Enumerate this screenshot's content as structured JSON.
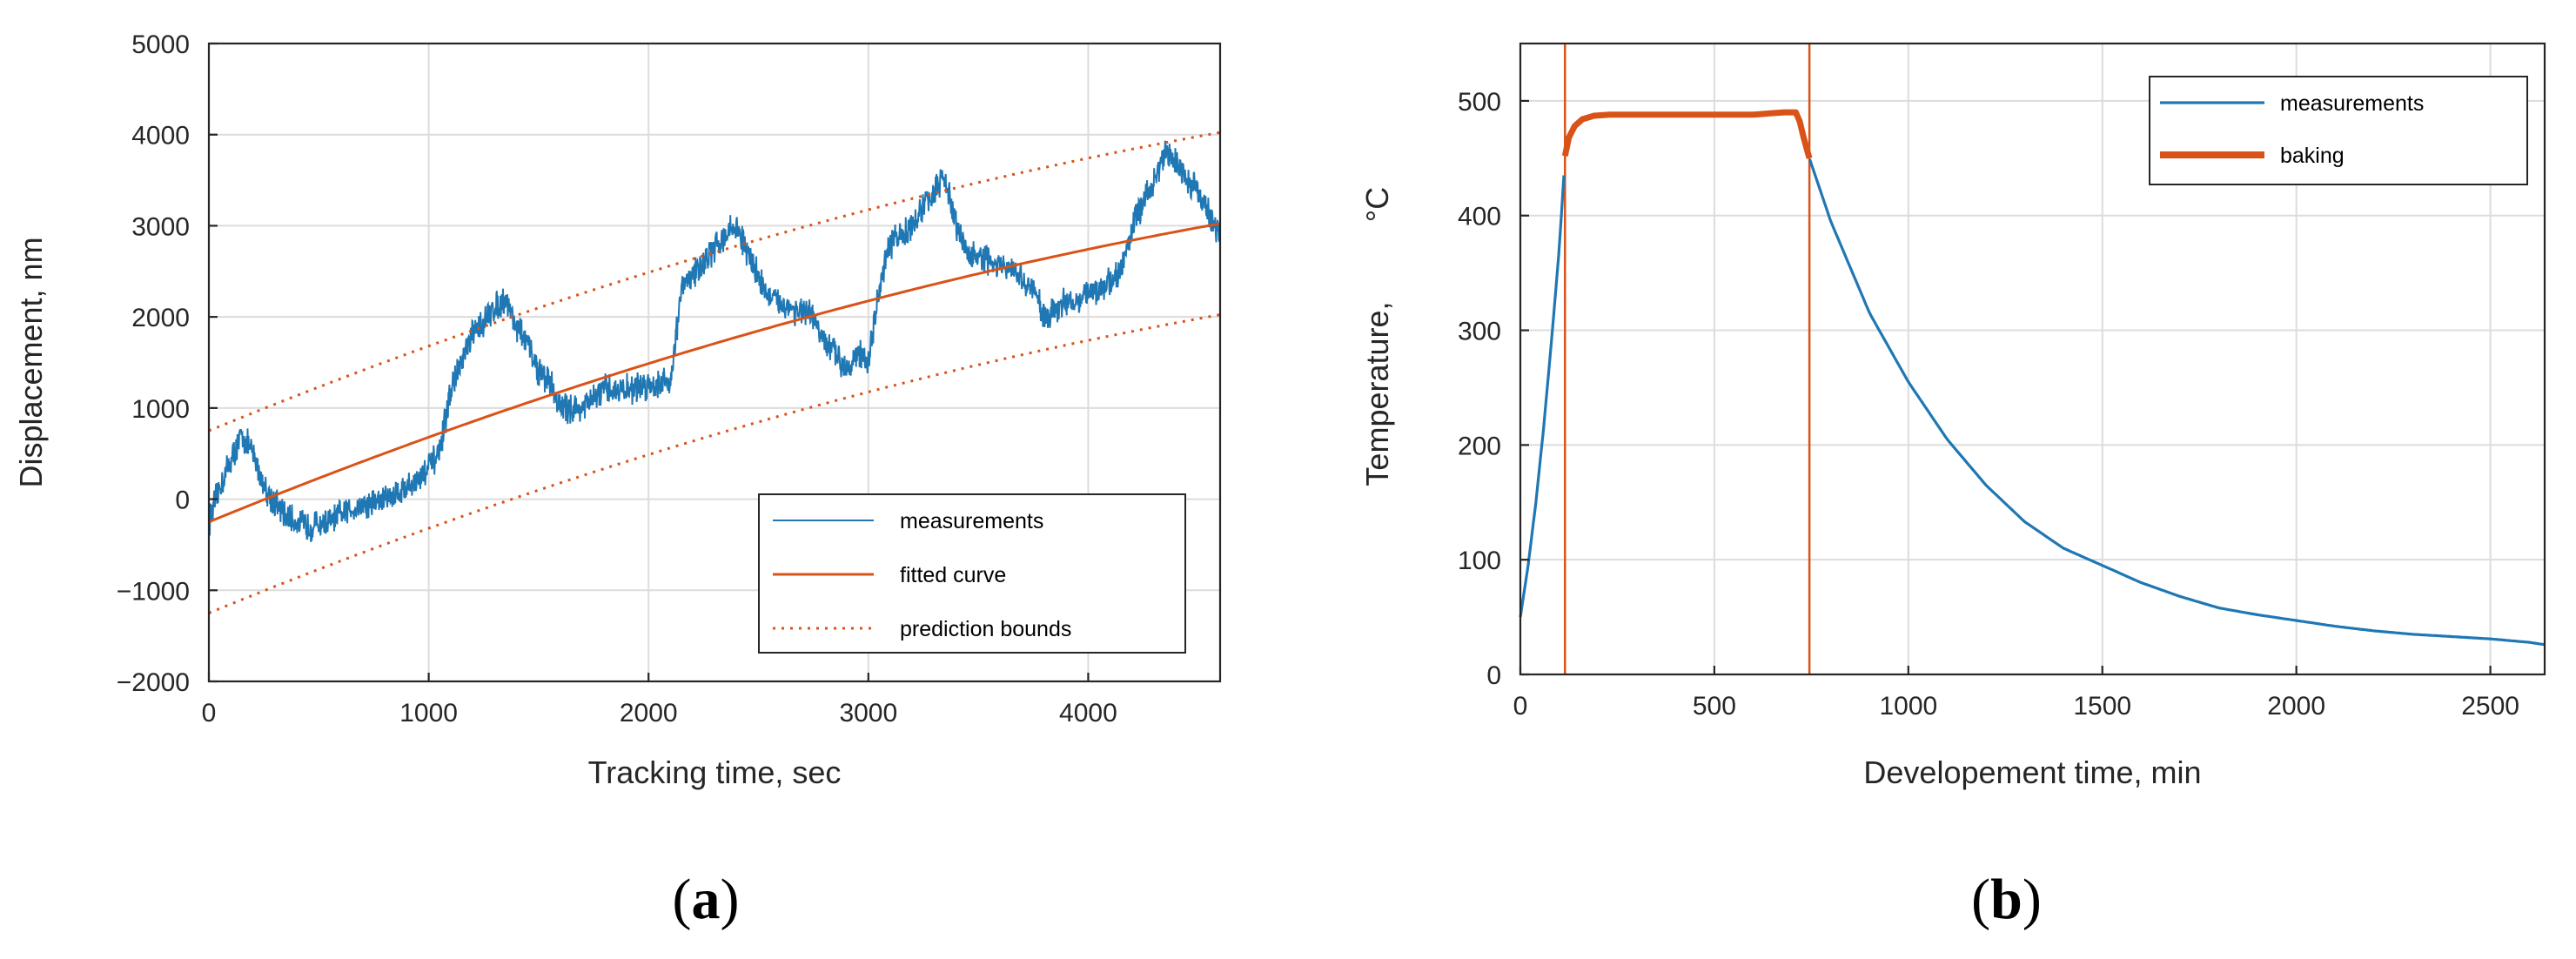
{
  "colors": {
    "blue": "#1f77b4",
    "orange": "#d95319",
    "axis": "#262626"
  },
  "chart_data": [
    {
      "id": "a",
      "type": "line",
      "panel_label": "(a)",
      "title": "",
      "xlabel": "Tracking time, sec",
      "ylabel": "Displacement, nm",
      "xlim": [
        0,
        4600
      ],
      "ylim": [
        -2000,
        5000
      ],
      "xticks": [
        0,
        1000,
        2000,
        3000,
        4000
      ],
      "yticks": [
        -2000,
        -1000,
        0,
        1000,
        2000,
        3000,
        4000,
        5000
      ],
      "xtick_labels": [
        "0",
        "1000",
        "2000",
        "3000",
        "4000"
      ],
      "ytick_labels": [
        "−2000",
        "−1000",
        "0",
        "1000",
        "2000",
        "3000",
        "4000",
        "5000"
      ],
      "grid": true,
      "legend_position": "bottom-right",
      "legend": [
        "measurements",
        "fitted curve",
        "prediction bounds"
      ],
      "series": [
        {
          "name": "measurements",
          "style": "solid-thin",
          "color": "#1f77b4",
          "noisy": true,
          "x": [
            0,
            60,
            150,
            200,
            260,
            350,
            450,
            550,
            650,
            800,
            950,
            1050,
            1100,
            1200,
            1300,
            1350,
            1400,
            1450,
            1500,
            1550,
            1600,
            1700,
            1800,
            1900,
            2000,
            2100,
            2150,
            2180,
            2250,
            2350,
            2400,
            2450,
            2550,
            2650,
            2750,
            2800,
            2850,
            2900,
            2950,
            3000,
            3050,
            3100,
            3200,
            3300,
            3350,
            3400,
            3450,
            3550,
            3650,
            3750,
            3800,
            3850,
            3950,
            4050,
            4150,
            4200,
            4300,
            4350,
            4400,
            4450,
            4500,
            4550,
            4600
          ],
          "y": [
            -250,
            200,
            700,
            500,
            100,
            -200,
            -300,
            -250,
            -100,
            0,
            200,
            500,
            1200,
            1800,
            2100,
            2200,
            1900,
            1700,
            1400,
            1300,
            1000,
            1000,
            1200,
            1200,
            1250,
            1300,
            2300,
            2400,
            2600,
            2900,
            3000,
            2700,
            2200,
            2100,
            2000,
            1700,
            1600,
            1450,
            1600,
            1500,
            2300,
            2800,
            3000,
            3400,
            3500,
            3000,
            2700,
            2600,
            2500,
            2300,
            2000,
            2100,
            2200,
            2300,
            2500,
            3000,
            3500,
            3800,
            3700,
            3500,
            3400,
            3100,
            2900
          ]
        },
        {
          "name": "fitted curve",
          "style": "solid",
          "color": "#d95319",
          "function": "fit"
        },
        {
          "name": "prediction bounds",
          "style": "dotted",
          "color": "#d95319",
          "function": "fit",
          "offsets": [
            1000,
            -1000
          ]
        }
      ]
    },
    {
      "id": "b",
      "type": "line",
      "panel_label": "(b)",
      "title": "",
      "xlabel": "Developement time, min",
      "ylabel": "Temperature,",
      "yunit": "°C",
      "xlim": [
        0,
        2640
      ],
      "ylim": [
        0,
        550
      ],
      "xticks": [
        0,
        500,
        1000,
        1500,
        2000,
        2500
      ],
      "yticks": [
        0,
        100,
        200,
        300,
        400,
        500
      ],
      "xtick_labels": [
        "0",
        "500",
        "1000",
        "1500",
        "2000",
        "2500"
      ],
      "ytick_labels": [
        "0",
        "100",
        "200",
        "300",
        "400",
        "500"
      ],
      "grid": true,
      "legend_position": "top-right",
      "legend": [
        "measurements",
        "baking"
      ],
      "vlines": [
        115,
        745
      ],
      "series": [
        {
          "name": "measurements",
          "style": "solid",
          "color": "#1f77b4",
          "x": [
            0,
            20,
            40,
            60,
            80,
            100,
            115,
            745,
            800,
            900,
            1000,
            1100,
            1200,
            1300,
            1400,
            1500,
            1600,
            1700,
            1800,
            1900,
            2000,
            2100,
            2200,
            2300,
            2400,
            2500,
            2600,
            2640
          ],
          "y": [
            50,
            95,
            150,
            215,
            290,
            370,
            450,
            450,
            395,
            315,
            255,
            205,
            165,
            133,
            110,
            95,
            80,
            68,
            58,
            52,
            47,
            42,
            38,
            35,
            33,
            31,
            28,
            26
          ]
        },
        {
          "name": "baking",
          "style": "solid-thick",
          "color": "#d95319",
          "x": [
            115,
            125,
            140,
            160,
            190,
            230,
            300,
            400,
            500,
            600,
            680,
            710,
            720,
            730,
            745
          ],
          "y": [
            452,
            468,
            478,
            484,
            487,
            488,
            488,
            488,
            488,
            488,
            490,
            490,
            482,
            468,
            450
          ]
        }
      ]
    }
  ]
}
